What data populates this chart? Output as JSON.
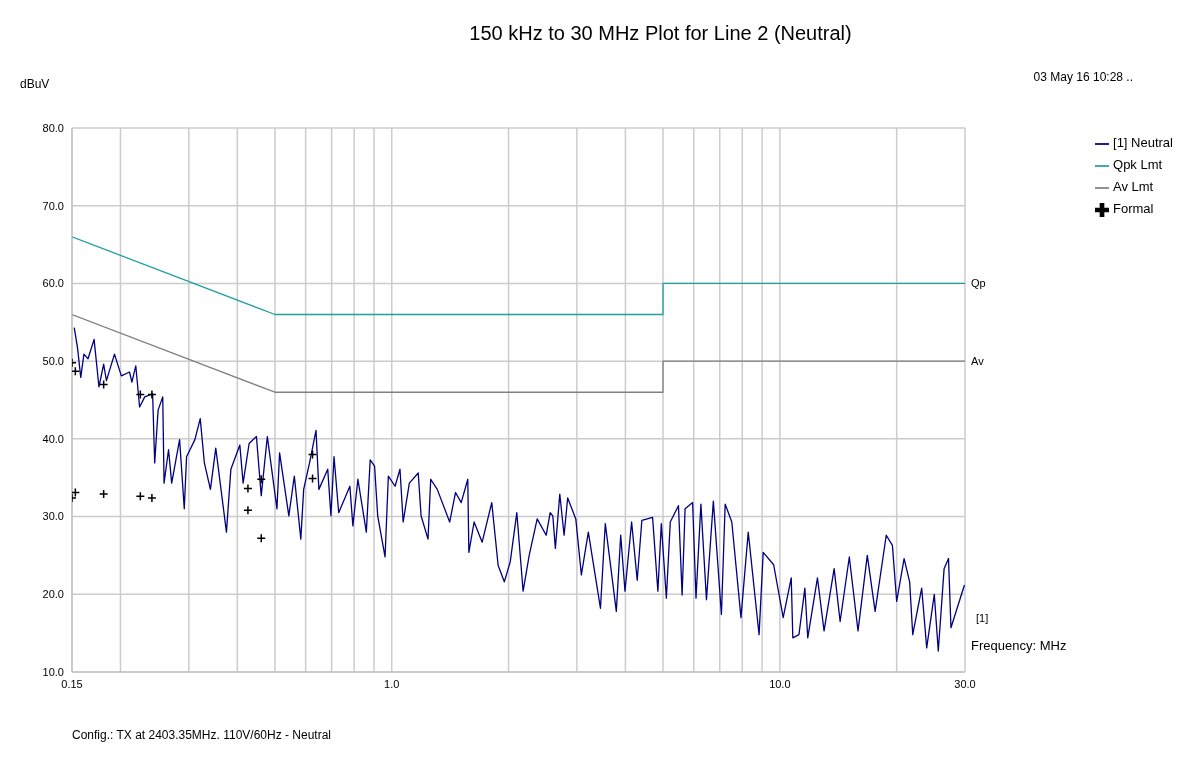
{
  "chart_data": {
    "type": "line",
    "title": "150 kHz to 30 MHz Plot for Line 2 (Neutral)",
    "xlabel": "Frequency: MHz",
    "ylabel": "dBuV",
    "log": "x",
    "grid": true,
    "legend": "top right",
    "xlim": [
      0.15,
      30
    ],
    "xticks": [
      0.15,
      {
        "value": 0.2,
        "label": null
      },
      {
        "value": 0.3,
        "label": null
      },
      {
        "value": 0.4,
        "label": null
      },
      {
        "value": 0.5,
        "label": null
      },
      {
        "value": 0.6,
        "label": null
      },
      {
        "value": 0.7,
        "label": null
      },
      {
        "value": 0.8,
        "label": null
      },
      {
        "value": 0.9,
        "label": null
      },
      {
        "value": 1,
        "label": "1.0"
      },
      {
        "value": 2,
        "label": null
      },
      {
        "value": 3,
        "label": null
      },
      {
        "value": 4,
        "label": null
      },
      {
        "value": 5,
        "label": null
      },
      {
        "value": 6,
        "label": null
      },
      {
        "value": 7,
        "label": null
      },
      {
        "value": 8,
        "label": null
      },
      {
        "value": 9,
        "label": null
      },
      {
        "value": 10,
        "label": "10.0"
      },
      {
        "value": 20,
        "label": null
      },
      {
        "value": 30,
        "label": "30.0"
      }
    ],
    "ylim": [
      10,
      80
    ],
    "yticks": [
      {
        "value": 10,
        "label": "10.0"
      },
      {
        "value": 20,
        "label": "20.0"
      },
      {
        "value": 30,
        "label": "30.0"
      },
      {
        "value": 40,
        "label": "40.0"
      },
      {
        "value": 50,
        "label": "50.0"
      },
      {
        "value": 60,
        "label": "60.0"
      },
      {
        "value": 70,
        "label": "70.0"
      },
      {
        "value": 80,
        "label": "80.0"
      }
    ],
    "series": [
      {
        "name": "[1] Neutral",
        "color": "#000080",
        "x": [
          0.152,
          0.155,
          0.158,
          0.161,
          0.165,
          0.171,
          0.176,
          0.181,
          0.184,
          0.193,
          0.201,
          0.211,
          0.214,
          0.219,
          0.224,
          0.231,
          0.242,
          0.245,
          0.25,
          0.257,
          0.259,
          0.266,
          0.271,
          0.284,
          0.292,
          0.296,
          0.311,
          0.321,
          0.329,
          0.341,
          0.352,
          0.375,
          0.385,
          0.406,
          0.414,
          0.429,
          0.448,
          0.461,
          0.478,
          0.506,
          0.514,
          0.543,
          0.561,
          0.583,
          0.593,
          0.614,
          0.638,
          0.649,
          0.684,
          0.697,
          0.71,
          0.73,
          0.78,
          0.794,
          0.818,
          0.86,
          0.88,
          0.903,
          0.92,
          0.961,
          0.98,
          1.02,
          1.05,
          1.07,
          1.11,
          1.17,
          1.19,
          1.24,
          1.26,
          1.31,
          1.41,
          1.46,
          1.51,
          1.57,
          1.58,
          1.63,
          1.71,
          1.81,
          1.88,
          1.95,
          2.02,
          2.1,
          2.18,
          2.26,
          2.37,
          2.5,
          2.56,
          2.6,
          2.64,
          2.71,
          2.78,
          2.84,
          2.98,
          3.08,
          3.21,
          3.45,
          3.55,
          3.79,
          3.89,
          3.99,
          4.15,
          4.29,
          4.41,
          4.7,
          4.85,
          4.95,
          5.1,
          5.22,
          5.48,
          5.6,
          5.7,
          5.96,
          6.08,
          6.26,
          6.47,
          6.74,
          7.07,
          7.23,
          7.52,
          7.94,
          8.29,
          8.84,
          9.06,
          9.64,
          10.2,
          10.7,
          10.8,
          11.2,
          11.6,
          11.8,
          12.5,
          13,
          13.8,
          14.3,
          15.1,
          15.9,
          16.8,
          17.6,
          18.8,
          19.5,
          20,
          20.9,
          21.6,
          22,
          23.2,
          23.9,
          25,
          25.6,
          26.5,
          27.2,
          27.6,
          29.9
        ],
        "values": [
          54.3,
          51.7,
          47.9,
          50.9,
          50.3,
          52.8,
          46.7,
          49.6,
          47.5,
          50.9,
          48.1,
          48.6,
          47.3,
          49.4,
          44.1,
          45.4,
          45.8,
          36.9,
          43.7,
          45.4,
          34.3,
          38.6,
          34.3,
          39.9,
          31.0,
          37.7,
          39.9,
          42.6,
          36.9,
          33.5,
          38.8,
          28.0,
          36.1,
          39.2,
          34.3,
          39.4,
          40.3,
          32.7,
          40.3,
          31.0,
          38.2,
          30.1,
          35.2,
          27.1,
          33.5,
          36.9,
          41.1,
          33.5,
          36.1,
          30.1,
          37.7,
          30.5,
          33.9,
          28.8,
          34.8,
          28.0,
          37.3,
          36.5,
          30.1,
          24.8,
          35.2,
          33.9,
          36.1,
          29.3,
          34.3,
          35.6,
          30.1,
          27.1,
          34.8,
          33.5,
          29.3,
          33.1,
          31.8,
          34.8,
          25.4,
          29.3,
          26.7,
          31.8,
          23.7,
          21.6,
          24.2,
          30.5,
          20.4,
          25.0,
          29.7,
          27.6,
          30.5,
          30.1,
          25.9,
          32.9,
          27.6,
          32.4,
          29.7,
          22.5,
          28.0,
          18.2,
          29.1,
          17.8,
          27.6,
          20.4,
          29.3,
          21.8,
          29.5,
          29.9,
          20.4,
          29.1,
          19.5,
          29.3,
          31.4,
          19.9,
          31.0,
          31.8,
          19.5,
          31.6,
          19.3,
          32.0,
          17.4,
          31.6,
          29.3,
          17.0,
          28.0,
          14.8,
          25.4,
          23.8,
          17.0,
          22.1,
          14.4,
          14.8,
          20.8,
          14.4,
          22.1,
          15.3,
          23.3,
          16.5,
          24.8,
          15.3,
          25.0,
          17.8,
          27.6,
          26.3,
          19.1,
          24.6,
          21.6,
          14.8,
          20.8,
          13.1,
          20.0,
          12.7,
          23.3,
          24.6,
          15.7,
          21.2
        ]
      },
      {
        "name": "Qpk Lmt",
        "color": "#20a0a0",
        "x": [
          0.15,
          0.5,
          5,
          5,
          30
        ],
        "values": [
          66,
          56,
          56,
          60,
          60
        ]
      },
      {
        "name": "Av Lmt",
        "color": "#808080",
        "x": [
          0.15,
          0.5,
          5,
          5,
          30
        ],
        "values": [
          56,
          46,
          46,
          50,
          50
        ]
      },
      {
        "name": "Formal",
        "type": "scatter",
        "marker": "cross",
        "color": "#000000",
        "x": [
          0.15,
          0.153,
          0.181,
          0.225,
          0.241,
          0.15,
          0.153,
          0.181,
          0.225,
          0.241,
          0.426,
          0.426,
          0.461,
          0.461,
          0.625,
          0.625
        ],
        "values": [
          49.8,
          48.7,
          47.0,
          45.7,
          45.7,
          32.4,
          33.1,
          32.9,
          32.6,
          32.4,
          33.6,
          30.8,
          34.8,
          27.2,
          38.0,
          34.9
        ]
      }
    ],
    "annotations": [
      "03 May 16 10:28 ..",
      {
        "text": "Qp",
        "x": 30,
        "y": 60
      },
      {
        "text": "Av",
        "x": 30,
        "y": 50
      },
      "[1]",
      "Config.: TX at 2403.35MHz. 110V/60Hz - Neutral"
    ]
  }
}
